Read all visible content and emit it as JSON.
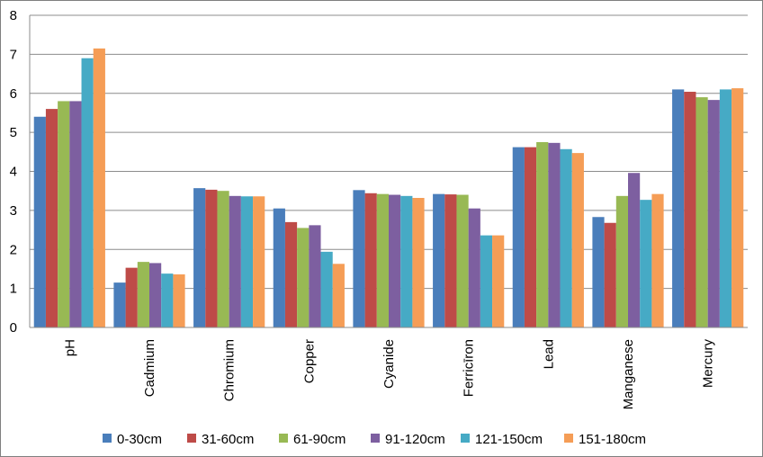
{
  "chart_data": {
    "type": "bar",
    "title": "",
    "xlabel": "",
    "ylabel": "",
    "ylim": [
      0,
      8
    ],
    "yticks": [
      0,
      1,
      2,
      3,
      4,
      5,
      6,
      7,
      8
    ],
    "grid": true,
    "legend_position": "bottom",
    "categories": [
      "pH",
      "Cadmium",
      "Chromium",
      "Copper",
      "Cyanide",
      "Ferricīron",
      "Lead",
      "Manganese",
      "Mercury"
    ],
    "series": [
      {
        "name": "0-30cm",
        "color": "#4a7ebb",
        "values": [
          5.4,
          1.15,
          3.57,
          3.05,
          3.52,
          3.42,
          4.62,
          2.83,
          6.1
        ]
      },
      {
        "name": "31-60cm",
        "color": "#be4b48",
        "values": [
          5.6,
          1.53,
          3.53,
          2.7,
          3.44,
          3.41,
          4.62,
          2.68,
          6.04
        ]
      },
      {
        "name": "61-90cm",
        "color": "#98b954",
        "values": [
          5.8,
          1.68,
          3.5,
          2.55,
          3.42,
          3.4,
          4.75,
          3.37,
          5.9
        ]
      },
      {
        "name": "91-120cm",
        "color": "#7d5fa0",
        "values": [
          5.8,
          1.65,
          3.37,
          2.62,
          3.4,
          3.05,
          4.73,
          3.96,
          5.83
        ]
      },
      {
        "name": "121-150cm",
        "color": "#46aac5",
        "values": [
          6.9,
          1.38,
          3.36,
          1.94,
          3.37,
          2.36,
          4.57,
          3.27,
          6.1
        ]
      },
      {
        "name": "151-180cm",
        "color": "#f59d56",
        "values": [
          7.15,
          1.36,
          3.36,
          1.63,
          3.32,
          2.36,
          4.47,
          3.42,
          6.13
        ]
      }
    ],
    "gridline_color": "#8c8c8c",
    "axis_color": "#8c8c8c"
  }
}
